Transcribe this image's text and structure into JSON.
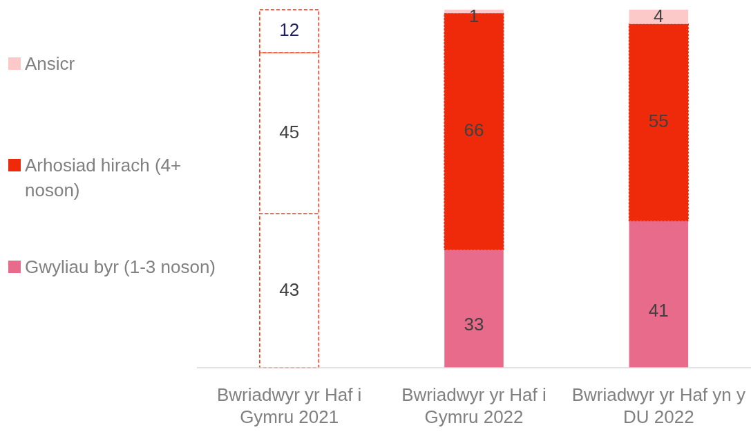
{
  "chart_data": {
    "type": "bar",
    "stacked": true,
    "categories": [
      "Bwriadwyr yr Haf i Gymru 2021",
      "Bwriadwyr yr Haf i Gymru 2022",
      "Bwriadwyr yr Haf yn y DU 2022"
    ],
    "series": [
      {
        "name": "Gwyliau byr (1-3 noson)",
        "color": "#e86b8b",
        "colors": [
          "#ffffff",
          "#e86b8b",
          "#e86b8b"
        ],
        "values": [
          43,
          33,
          41
        ]
      },
      {
        "name": "Arhosiad hirach (4+ noson)",
        "color": "#ee2a0b",
        "colors": [
          "#ffffff",
          "#ee2a0b",
          "#ee2a0b"
        ],
        "values": [
          45,
          66,
          55
        ]
      },
      {
        "name": "Ansicr",
        "color": "#fcc8c8",
        "colors": [
          "#ffffff",
          "#fcc8c8",
          "#fcc8c8"
        ],
        "values": [
          12,
          1,
          4
        ]
      }
    ],
    "data_labels": true,
    "legend": "left"
  }
}
